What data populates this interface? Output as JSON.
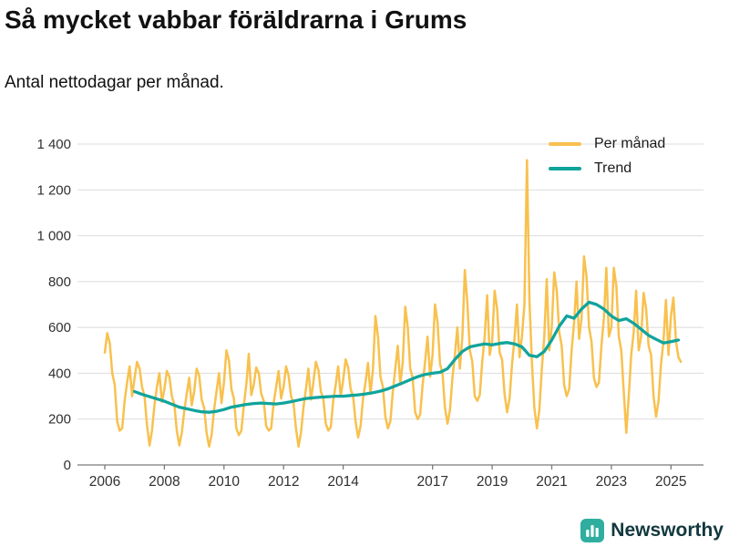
{
  "header": {
    "title": "Så mycket vabbar föräldrarna i Grums",
    "subtitle": "Antal nettodagar per månad."
  },
  "footer": {
    "brand": "Newsworthy"
  },
  "colors": {
    "per_manad": "#F8C14E",
    "trend": "#10A49C",
    "grid": "#DBDBDB",
    "axis": "#7A7A7A",
    "text": "#303030",
    "brand_icon": "#2FAE9F",
    "brand_text": "#12383E"
  },
  "chart_data": {
    "type": "line",
    "title": "Så mycket vabbar föräldrarna i Grums",
    "subtitle": "Antal nettodagar per månad.",
    "xlabel": "",
    "ylabel": "",
    "ylim": [
      0,
      1400
    ],
    "xlim": [
      2005.6,
      2025.7
    ],
    "grid": "horizontal",
    "legend_position": "top-right",
    "yticks": {
      "values": [
        0,
        200,
        400,
        600,
        800,
        1000,
        1200,
        1400
      ],
      "labels": [
        "0",
        "200",
        "400",
        "600",
        "800",
        "1 000",
        "1 200",
        "1 400"
      ]
    },
    "xticks": [
      2006,
      2008,
      2010,
      2012,
      2014,
      2017,
      2019,
      2021,
      2023,
      2025
    ],
    "series": [
      {
        "name": "Per månad",
        "color": "#F8C14E",
        "line_width": 2.5,
        "start_year": 2006,
        "start_month": 1,
        "interval_months": 1,
        "values": [
          490,
          575,
          530,
          400,
          350,
          190,
          150,
          160,
          280,
          360,
          430,
          300,
          380,
          450,
          420,
          340,
          300,
          175,
          85,
          150,
          260,
          340,
          400,
          275,
          330,
          410,
          385,
          300,
          265,
          150,
          85,
          140,
          235,
          310,
          380,
          260,
          320,
          420,
          390,
          285,
          250,
          140,
          80,
          130,
          240,
          320,
          400,
          270,
          360,
          500,
          455,
          330,
          290,
          160,
          130,
          150,
          260,
          350,
          485,
          305,
          350,
          425,
          400,
          310,
          280,
          170,
          150,
          160,
          270,
          340,
          410,
          290,
          340,
          430,
          390,
          300,
          270,
          160,
          80,
          140,
          250,
          330,
          420,
          285,
          360,
          450,
          415,
          320,
          290,
          180,
          150,
          165,
          280,
          350,
          430,
          300,
          370,
          460,
          425,
          330,
          300,
          190,
          120,
          170,
          290,
          360,
          445,
          310,
          420,
          650,
          560,
          385,
          340,
          210,
          160,
          190,
          320,
          420,
          520,
          350,
          450,
          690,
          600,
          420,
          380,
          230,
          200,
          220,
          350,
          450,
          560,
          385,
          480,
          700,
          620,
          440,
          400,
          250,
          180,
          240,
          380,
          480,
          600,
          420,
          560,
          850,
          705,
          500,
          450,
          300,
          280,
          305,
          450,
          560,
          740,
          480,
          540,
          760,
          680,
          490,
          460,
          310,
          230,
          290,
          440,
          550,
          700,
          470,
          560,
          700,
          1330,
          720,
          450,
          250,
          160,
          240,
          420,
          560,
          810,
          500,
          600,
          840,
          760,
          580,
          520,
          350,
          300,
          330,
          500,
          620,
          800,
          550,
          640,
          910,
          820,
          600,
          540,
          380,
          340,
          360,
          520,
          640,
          860,
          560,
          600,
          860,
          780,
          560,
          500,
          320,
          140,
          300,
          480,
          580,
          760,
          500,
          560,
          750,
          680,
          520,
          480,
          300,
          210,
          280,
          440,
          540,
          720,
          480,
          650,
          730,
          540,
          470,
          450
        ]
      },
      {
        "name": "Trend",
        "color": "#10A49C",
        "line_width": 3.3,
        "start_year": 2007,
        "start_month": 1,
        "interval_months": 3,
        "values": [
          320,
          308,
          298,
          288,
          278,
          265,
          252,
          245,
          238,
          232,
          230,
          234,
          242,
          252,
          258,
          264,
          268,
          270,
          268,
          266,
          270,
          276,
          283,
          290,
          293,
          296,
          298,
          300,
          300,
          303,
          306,
          310,
          315,
          322,
          332,
          345,
          358,
          372,
          385,
          395,
          400,
          404,
          420,
          460,
          495,
          515,
          522,
          528,
          524,
          530,
          534,
          528,
          515,
          478,
          472,
          495,
          545,
          605,
          650,
          640,
          680,
          710,
          700,
          680,
          650,
          630,
          638,
          618,
          592,
          565,
          548,
          532,
          538,
          545
        ]
      }
    ]
  }
}
